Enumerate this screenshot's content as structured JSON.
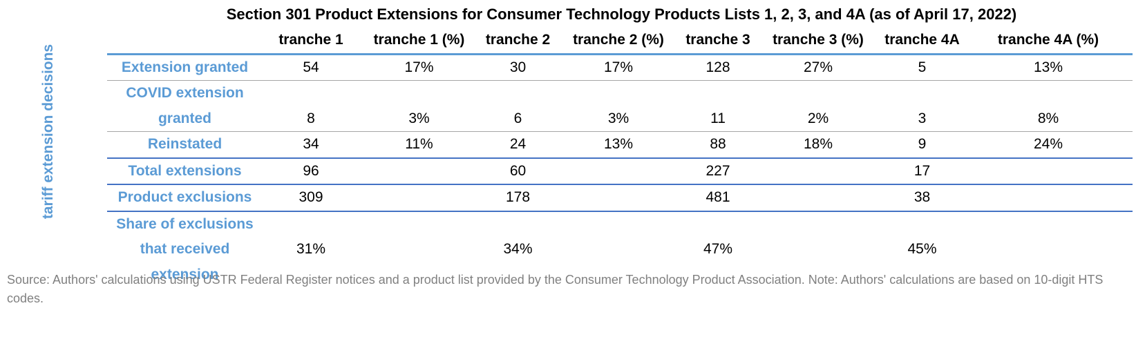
{
  "chart_data": {
    "type": "table",
    "title": "Section 301 Product Extensions for Consumer Technology Products Lists 1, 2, 3, and 4A (as of April 17, 2022)",
    "row_group_label": "tariff extension decisions",
    "columns": [
      "tranche 1",
      "tranche 1 (%)",
      "tranche 2",
      "tranche 2 (%)",
      "tranche 3",
      "tranche 3 (%)",
      "tranche 4A",
      "tranche 4A (%)"
    ],
    "rows": [
      {
        "label": "Extension granted",
        "values": [
          "54",
          "17%",
          "30",
          "17%",
          "128",
          "27%",
          "5",
          "13%"
        ]
      },
      {
        "label": "COVID extension granted",
        "values": [
          "8",
          "3%",
          "6",
          "3%",
          "11",
          "2%",
          "3",
          "8%"
        ]
      },
      {
        "label": "Reinstated",
        "values": [
          "34",
          "11%",
          "24",
          "13%",
          "88",
          "18%",
          "9",
          "24%"
        ]
      },
      {
        "label": "Total extensions",
        "values": [
          "96",
          "",
          "60",
          "",
          "227",
          "",
          "17",
          ""
        ]
      },
      {
        "label": "Product exclusions",
        "values": [
          "309",
          "",
          "178",
          "",
          "481",
          "",
          "38",
          ""
        ]
      },
      {
        "label": "Share of exclusions that received extension",
        "values": [
          "31%",
          "",
          "34%",
          "",
          "47%",
          "",
          "45%",
          ""
        ]
      }
    ],
    "source": "Source: Authors' calculations using USTR Federal Register notices and a product list provided by the Consumer Technology Product Association. Note: Authors' calculations are based on 10-digit HTS codes.",
    "colors": {
      "label_blue": "#5b9bd5",
      "rule_blue": "#4472c4",
      "rule_gray": "#a6a6a6",
      "source_gray": "#808080"
    }
  }
}
